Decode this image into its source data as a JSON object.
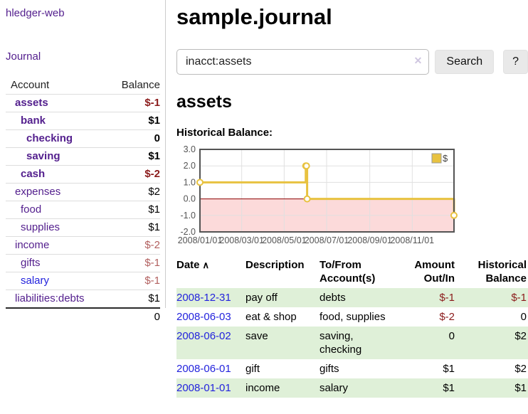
{
  "sidebar": {
    "brand": "hledger-web",
    "nav": {
      "journal": "Journal"
    },
    "headers": {
      "account": "Account",
      "balance": "Balance"
    },
    "accounts": [
      {
        "name": "assets",
        "balance": "$-1"
      },
      {
        "name": "bank",
        "balance": "$1"
      },
      {
        "name": "checking",
        "balance": "0"
      },
      {
        "name": "saving",
        "balance": "$1"
      },
      {
        "name": "cash",
        "balance": "$-2"
      },
      {
        "name": "expenses",
        "balance": "$2"
      },
      {
        "name": "food",
        "balance": "$1"
      },
      {
        "name": "supplies",
        "balance": "$1"
      },
      {
        "name": "income",
        "balance": "$-2"
      },
      {
        "name": "gifts",
        "balance": "$-1"
      },
      {
        "name": "salary",
        "balance": "$-1"
      },
      {
        "name": "liabilities:debts",
        "balance": "$1"
      }
    ],
    "total": "0"
  },
  "main": {
    "title": "sample.journal",
    "search": {
      "query": "inacct:assets",
      "clear_icon": "✕",
      "search_button": "Search",
      "help_button": "?"
    },
    "account_heading": "assets",
    "chart_heading": "Historical Balance:"
  },
  "chart_data": {
    "type": "line",
    "step": true,
    "title": "Historical Balance",
    "xlim": [
      "2008-01-01",
      "2008-12-31"
    ],
    "ylim": [
      -2,
      3
    ],
    "y_ticks": [
      "3.0",
      "2.0",
      "1.0",
      "0.0",
      "-1.0",
      "-2.0"
    ],
    "x_ticks": [
      {
        "date": "2008-01-01",
        "label": "2008/01/01"
      },
      {
        "date": "2008-03-01",
        "label": "2008/03/01"
      },
      {
        "date": "2008-05-01",
        "label": "2008/05/01"
      },
      {
        "date": "2008-07-01",
        "label": "2008/07/01"
      },
      {
        "date": "2008-09-01",
        "label": "2008/09/01"
      },
      {
        "date": "2008-11-01",
        "label": "2008/11/01"
      }
    ],
    "series": [
      {
        "name": "$",
        "color": "#e8c240",
        "points": [
          [
            "2008-01-01",
            1
          ],
          [
            "2008-06-01",
            2
          ],
          [
            "2008-06-02",
            2
          ],
          [
            "2008-06-03",
            0
          ],
          [
            "2008-12-31",
            -1
          ]
        ]
      }
    ],
    "legend_position": "top-right",
    "grid": true,
    "colors": {
      "grid": "#e0e0e0",
      "border": "#545454",
      "zero_line": "#8b0000",
      "negative_region": "#fcdada"
    }
  },
  "register": {
    "headers": {
      "date": "Date",
      "description": "Description",
      "accounts": "To/From Account(s)",
      "amount": "Amount Out/In",
      "balance": "Historical Balance"
    },
    "sort_icon": "∧",
    "rows": [
      {
        "date": "2008-12-31",
        "description": "pay off",
        "accounts": "debts",
        "amount": "$-1",
        "balance": "$-1"
      },
      {
        "date": "2008-06-03",
        "description": "eat & shop",
        "accounts": "food, supplies",
        "amount": "$-2",
        "balance": "0"
      },
      {
        "date": "2008-06-02",
        "description": "save",
        "accounts": "saving, checking",
        "amount": "0",
        "balance": "$2"
      },
      {
        "date": "2008-06-01",
        "description": "gift",
        "accounts": "gifts",
        "amount": "$1",
        "balance": "$2"
      },
      {
        "date": "2008-01-01",
        "description": "income",
        "accounts": "salary",
        "amount": "$1",
        "balance": "$1"
      }
    ]
  }
}
